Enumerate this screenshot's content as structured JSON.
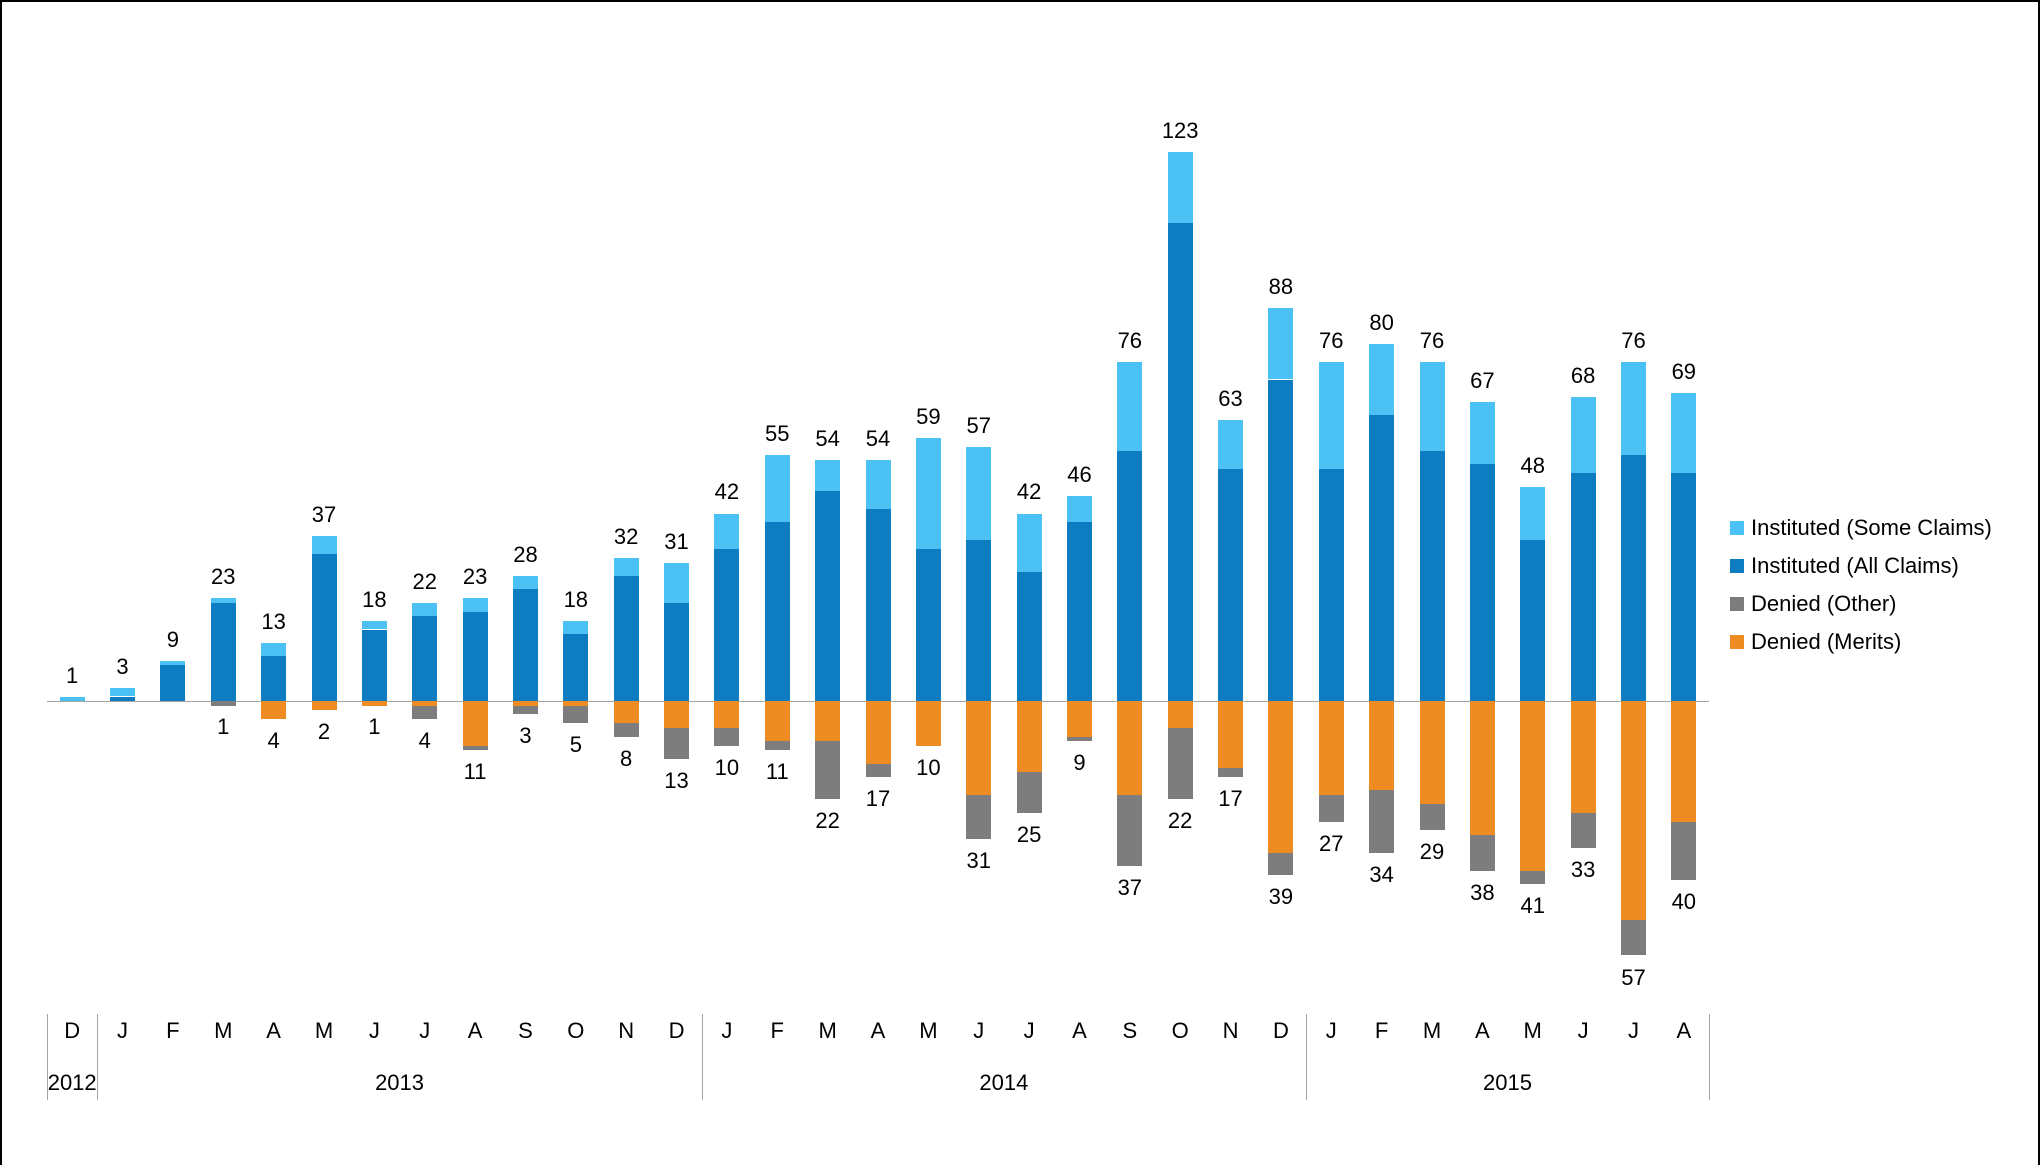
{
  "chart_data": {
    "type": "bar",
    "stacked": true,
    "diverging": true,
    "title": "",
    "legend_position": "right",
    "grid": false,
    "categories": [
      "D",
      "J",
      "F",
      "M",
      "A",
      "M",
      "J",
      "J",
      "A",
      "S",
      "O",
      "N",
      "D",
      "J",
      "F",
      "M",
      "A",
      "M",
      "J",
      "J",
      "A",
      "S",
      "O",
      "N",
      "D",
      "J",
      "F",
      "M",
      "A",
      "M",
      "J",
      "J",
      "A"
    ],
    "year_groups": [
      {
        "label": "2012",
        "span": 1
      },
      {
        "label": "2013",
        "span": 12
      },
      {
        "label": "2014",
        "span": 12
      },
      {
        "label": "2015",
        "span": 8
      }
    ],
    "series": [
      {
        "name": "Instituted (Some Claims)",
        "color": "#4cc2f4",
        "direction": "positive",
        "values": [
          1,
          2,
          1,
          1,
          3,
          4,
          2,
          3,
          3,
          3,
          3,
          4,
          9,
          8,
          15,
          7,
          11,
          25,
          21,
          13,
          6,
          20,
          16,
          11,
          16,
          24,
          16,
          20,
          14,
          12,
          17,
          21,
          18
        ]
      },
      {
        "name": "Instituted (All Claims)",
        "color": "#0d7cc1",
        "direction": "positive",
        "values": [
          0,
          1,
          8,
          22,
          10,
          33,
          16,
          19,
          20,
          25,
          15,
          28,
          22,
          34,
          40,
          47,
          43,
          34,
          36,
          29,
          40,
          56,
          107,
          52,
          72,
          52,
          64,
          56,
          53,
          36,
          51,
          55,
          51
        ]
      },
      {
        "name": "Denied (Other)",
        "color": "#7d7d7d",
        "direction": "negative",
        "values": [
          0,
          0,
          0,
          1,
          0,
          0,
          0,
          3,
          1,
          2,
          4,
          3,
          7,
          4,
          2,
          13,
          3,
          0,
          10,
          9,
          1,
          16,
          16,
          2,
          5,
          6,
          14,
          6,
          8,
          3,
          8,
          8,
          13
        ]
      },
      {
        "name": "Denied (Merits)",
        "color": "#ee8b22",
        "direction": "negative",
        "values": [
          0,
          0,
          0,
          0,
          4,
          2,
          1,
          1,
          10,
          1,
          1,
          5,
          6,
          6,
          9,
          9,
          14,
          10,
          21,
          16,
          8,
          21,
          6,
          15,
          34,
          21,
          20,
          23,
          30,
          38,
          25,
          49,
          27
        ]
      }
    ],
    "positive_totals": [
      1,
      3,
      9,
      23,
      13,
      37,
      18,
      22,
      23,
      28,
      18,
      32,
      31,
      42,
      55,
      54,
      54,
      59,
      57,
      42,
      46,
      76,
      123,
      63,
      88,
      76,
      80,
      76,
      67,
      48,
      68,
      76,
      69
    ],
    "negative_totals": [
      null,
      null,
      null,
      1,
      4,
      2,
      1,
      4,
      11,
      3,
      5,
      8,
      13,
      10,
      11,
      22,
      17,
      10,
      31,
      25,
      9,
      37,
      22,
      17,
      39,
      27,
      34,
      29,
      38,
      41,
      33,
      57,
      40
    ]
  }
}
